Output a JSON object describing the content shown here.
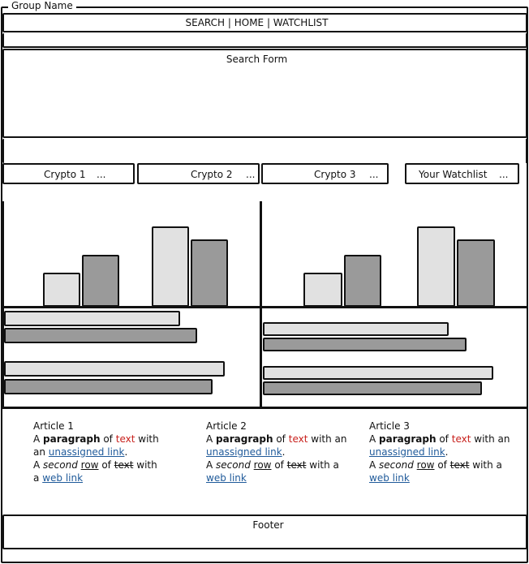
{
  "group": {
    "label": "Group Name"
  },
  "nav": {
    "label": "SEARCH | HOME | WATCHLIST"
  },
  "search_form": {
    "label": "Search Form"
  },
  "tabs": [
    {
      "label": "Crypto 1",
      "more": "..."
    },
    {
      "label": "Crypto 2",
      "more": "..."
    },
    {
      "label": "Crypto 3",
      "more": "..."
    },
    {
      "label": "Your Watchlist",
      "more": "..."
    }
  ],
  "charts": {
    "colors": {
      "light": "#e1e1e1",
      "dark": "#9a9a9a"
    }
  },
  "articles": [
    {
      "title": "Article 1",
      "a": "A",
      "bold": "paragraph",
      "of": "of",
      "red": "text",
      "with": "with",
      "an": "an",
      "link1": "unassigned link",
      "dot": ".",
      "l3a": "A",
      "second": "second",
      "row": "row",
      "of2": "of",
      "strike": "text",
      "with2": "with",
      "a2": "a",
      "link2": "web link"
    },
    {
      "title": "Article 2",
      "a": "A",
      "bold": "paragraph",
      "of": "of",
      "red": "text",
      "with": "with an",
      "an": "",
      "link1": "unassigned link",
      "dot": ".",
      "l3a": "A",
      "second": "second",
      "row": "row",
      "of2": "of",
      "strike": "text",
      "with2": "with a",
      "a2": "",
      "link2": "web link"
    },
    {
      "title": "Article 3",
      "a": "A",
      "bold": "paragraph",
      "of": "of",
      "red": "text",
      "with": "with an",
      "an": "",
      "link1": "unassigned link",
      "dot": ".",
      "l3a": "A",
      "second": "second",
      "row": "row",
      "of2": "of",
      "strike": "text",
      "with2": "with a",
      "a2": "",
      "link2": "web link"
    }
  ],
  "footer": {
    "label": "Footer"
  }
}
